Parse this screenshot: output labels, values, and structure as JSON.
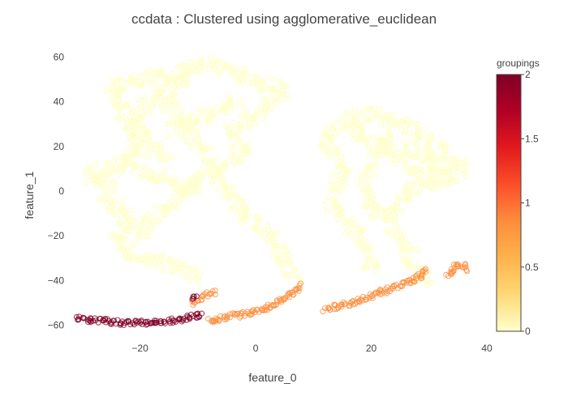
{
  "chart_data": {
    "type": "scatter",
    "title": "ccdata : Clustered using agglomerative_euclidean",
    "xlabel": "feature_0",
    "ylabel": "feature_1",
    "xlim": [
      -33,
      40
    ],
    "ylim": [
      -66,
      62
    ],
    "xticks": [
      -20,
      0,
      20,
      40
    ],
    "yticks": [
      60,
      40,
      20,
      0,
      -20,
      -40,
      -60
    ],
    "grid": false,
    "colorbar": {
      "title": "groupings",
      "range": [
        0,
        2
      ],
      "ticks": [
        2,
        1.5,
        1,
        0.5,
        0
      ],
      "colors": [
        "#ffffcc",
        "#fed976",
        "#feb24c",
        "#fd8d3c",
        "#fc4e2a",
        "#e31a1c",
        "#b10026",
        "#800026"
      ]
    },
    "groups": [
      {
        "value": 0,
        "color": "#ffffcc",
        "paths": [
          [
            [
              -10,
              -38
            ],
            [
              -14,
              -34
            ],
            [
              -19,
              -30
            ],
            [
              -23,
              -26
            ],
            [
              -24,
              -20
            ],
            [
              -21,
              -14
            ],
            [
              -24,
              -8
            ],
            [
              -26,
              -2
            ],
            [
              -25,
              2
            ],
            [
              -28,
              6
            ],
            [
              -29,
              8
            ],
            [
              -25,
              10
            ],
            [
              -22,
              13
            ],
            [
              -20,
              18
            ],
            [
              -21,
              24
            ],
            [
              -22,
              30
            ],
            [
              -23,
              36
            ],
            [
              -25,
              42
            ],
            [
              -24,
              47
            ],
            [
              -20,
              50
            ],
            [
              -15,
              52
            ],
            [
              -12,
              55
            ],
            [
              -9,
              57
            ],
            [
              -6,
              55
            ],
            [
              -3,
              52
            ],
            [
              0,
              49
            ],
            [
              3,
              47
            ],
            [
              5,
              44
            ],
            [
              3,
              40
            ],
            [
              1,
              35
            ],
            [
              -2,
              31
            ],
            [
              -4,
              27
            ],
            [
              -3,
              22
            ],
            [
              -2,
              18
            ],
            [
              -5,
              13
            ],
            [
              -7,
              8
            ],
            [
              -6,
              3
            ],
            [
              -4,
              -2
            ],
            [
              -3,
              -7
            ],
            [
              -1,
              -12
            ],
            [
              1,
              -17
            ],
            [
              3,
              -22
            ],
            [
              4,
              -27
            ],
            [
              5,
              -32
            ],
            [
              6,
              -36
            ],
            [
              7,
              -40
            ]
          ],
          [
            [
              -16,
              42
            ],
            [
              -14,
              35
            ],
            [
              -12,
              28
            ],
            [
              -10,
              22
            ],
            [
              -8,
              15
            ],
            [
              -9,
              8
            ],
            [
              -11,
              2
            ],
            [
              -14,
              -4
            ],
            [
              -17,
              -10
            ],
            [
              -19,
              -16
            ],
            [
              -21,
              -22
            ]
          ],
          [
            [
              -3,
              40
            ],
            [
              -6,
              36
            ],
            [
              -9,
              33
            ],
            [
              -12,
              30
            ],
            [
              -15,
              27
            ]
          ],
          [
            [
              -12,
              52
            ],
            [
              -15,
              46
            ],
            [
              -18,
              40
            ],
            [
              -21,
              34
            ],
            [
              -20,
              26
            ],
            [
              -18,
              20
            ],
            [
              -15,
              14
            ]
          ],
          [
            [
              -22,
              12
            ],
            [
              -19,
              8
            ],
            [
              -16,
              6
            ],
            [
              -13,
              3
            ],
            [
              -10,
              0
            ]
          ],
          [
            [
              30,
              -42
            ],
            [
              28,
              -36
            ],
            [
              27,
              -30
            ],
            [
              26,
              -24
            ],
            [
              24,
              -18
            ],
            [
              23,
              -13
            ],
            [
              24,
              -8
            ],
            [
              25,
              -3
            ],
            [
              27,
              1
            ],
            [
              30,
              4
            ],
            [
              33,
              6
            ],
            [
              35,
              8
            ],
            [
              36,
              10
            ],
            [
              34,
              14
            ],
            [
              32,
              18
            ],
            [
              30,
              23
            ],
            [
              27,
              27
            ],
            [
              24,
              31
            ],
            [
              21,
              34
            ],
            [
              18,
              34
            ],
            [
              15,
              31
            ],
            [
              13,
              27
            ],
            [
              12,
              22
            ],
            [
              13,
              17
            ],
            [
              14,
              12
            ],
            [
              15,
              6
            ],
            [
              14,
              1
            ],
            [
              13,
              -4
            ],
            [
              14,
              -9
            ],
            [
              16,
              -14
            ],
            [
              18,
              -20
            ],
            [
              19,
              -26
            ],
            [
              20,
              -31
            ],
            [
              20,
              -36
            ]
          ],
          [
            [
              16,
              28
            ],
            [
              19,
              24
            ],
            [
              22,
              20
            ],
            [
              25,
              15
            ],
            [
              28,
              10
            ],
            [
              31,
              6
            ]
          ],
          [
            [
              23,
              27
            ],
            [
              22,
              18
            ],
            [
              20,
              10
            ],
            [
              19,
              2
            ],
            [
              20,
              -6
            ],
            [
              22,
              -14
            ]
          ],
          [
            [
              26,
              20
            ],
            [
              29,
              16
            ],
            [
              31,
              12
            ],
            [
              33,
              8
            ]
          ]
        ]
      },
      {
        "value": 1,
        "color": "#fd8d3c",
        "paths": [
          [
            [
              -8,
              -58
            ],
            [
              -4,
              -56
            ],
            [
              0,
              -54
            ],
            [
              3,
              -51
            ],
            [
              5,
              -48
            ],
            [
              7,
              -45
            ],
            [
              8,
              -42
            ]
          ],
          [
            [
              -11,
              -50
            ],
            [
              -9,
              -47
            ],
            [
              -7,
              -45
            ]
          ],
          [
            [
              12,
              -53
            ],
            [
              15,
              -51
            ],
            [
              18,
              -49
            ],
            [
              21,
              -46
            ],
            [
              24,
              -43
            ],
            [
              27,
              -40
            ],
            [
              29,
              -37
            ],
            [
              30,
              -35
            ]
          ],
          [
            [
              33,
              -38
            ],
            [
              34,
              -35
            ],
            [
              35,
              -33
            ],
            [
              36,
              -33
            ],
            [
              37,
              -35
            ]
          ]
        ]
      },
      {
        "value": 2,
        "color": "#800026",
        "paths": [
          [
            [
              -31,
              -57
            ],
            [
              -27,
              -58
            ],
            [
              -23,
              -59
            ],
            [
              -19,
              -59
            ],
            [
              -15,
              -58
            ],
            [
              -12,
              -57
            ],
            [
              -9,
              -55
            ]
          ],
          [
            [
              -11,
              -48
            ],
            [
              -10,
              -47
            ]
          ]
        ]
      }
    ]
  }
}
